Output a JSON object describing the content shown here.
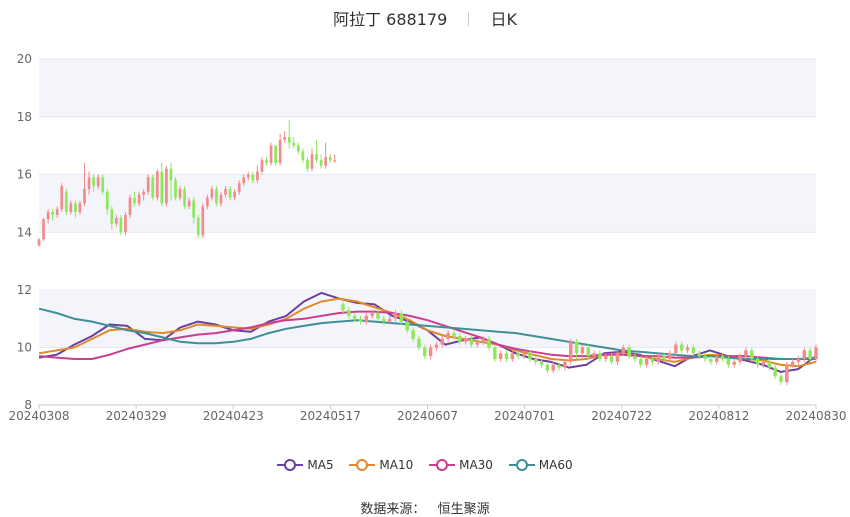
{
  "title": {
    "name": "阿拉丁",
    "code": "688179",
    "period": "日K"
  },
  "source": {
    "label": "数据来源：",
    "value": "恒生聚源"
  },
  "legend": [
    {
      "name": "MA5",
      "color": "#6b3fa0"
    },
    {
      "name": "MA10",
      "color": "#e08a2b"
    },
    {
      "name": "MA30",
      "color": "#cc3d8f"
    },
    {
      "name": "MA60",
      "color": "#3f8f96"
    }
  ],
  "colors": {
    "up": "#f28b8b",
    "down": "#8ee85a"
  },
  "chart_data": {
    "type": "candlestick",
    "x_ticks": [
      "20240308",
      "20240329",
      "20240423",
      "20240517",
      "20240607",
      "20240701",
      "20240722",
      "20240812",
      "20240830"
    ],
    "y_top": {
      "ylim": [
        12,
        20
      ],
      "ticks": [
        12,
        14,
        16,
        18,
        20
      ]
    },
    "y_bottom": {
      "ylim": [
        8,
        12
      ],
      "ticks": [
        8,
        10,
        12
      ]
    },
    "candles_top": [
      [
        13.55,
        13.75,
        13.5,
        13.8
      ],
      [
        13.75,
        14.45,
        13.7,
        14.5
      ],
      [
        14.45,
        14.7,
        14.3,
        14.8
      ],
      [
        14.7,
        14.6,
        14.4,
        14.8
      ],
      [
        14.6,
        14.8,
        14.5,
        14.9
      ],
      [
        14.8,
        15.6,
        14.7,
        15.7
      ],
      [
        15.4,
        14.7,
        14.6,
        15.5
      ],
      [
        14.7,
        15.0,
        14.6,
        15.1
      ],
      [
        15.0,
        14.7,
        14.5,
        15.1
      ],
      [
        14.7,
        15.0,
        14.6,
        15.1
      ],
      [
        15.0,
        15.5,
        14.9,
        16.4
      ],
      [
        15.5,
        15.9,
        15.3,
        16.1
      ],
      [
        15.9,
        15.6,
        15.4,
        16.0
      ],
      [
        15.6,
        15.9,
        15.5,
        16.0
      ],
      [
        15.9,
        15.4,
        15.3,
        16.0
      ],
      [
        15.4,
        14.8,
        14.6,
        15.5
      ],
      [
        14.8,
        14.3,
        14.1,
        14.9
      ],
      [
        14.3,
        14.5,
        14.2,
        14.6
      ],
      [
        14.5,
        14.0,
        13.9,
        14.6
      ],
      [
        14.0,
        14.6,
        13.9,
        14.7
      ],
      [
        14.6,
        15.2,
        14.5,
        15.3
      ],
      [
        15.2,
        15.0,
        14.9,
        15.4
      ],
      [
        15.0,
        15.3,
        14.9,
        15.4
      ],
      [
        15.3,
        15.4,
        15.1,
        15.5
      ],
      [
        15.4,
        15.9,
        15.3,
        16.0
      ],
      [
        15.9,
        15.2,
        15.1,
        16.0
      ],
      [
        15.2,
        16.1,
        15.1,
        16.2
      ],
      [
        16.1,
        15.0,
        14.9,
        16.4
      ],
      [
        15.0,
        16.2,
        14.9,
        16.3
      ],
      [
        16.2,
        15.8,
        15.1,
        16.4
      ],
      [
        15.8,
        15.2,
        15.1,
        15.9
      ],
      [
        15.2,
        15.5,
        15.1,
        15.6
      ],
      [
        15.5,
        14.9,
        14.8,
        15.6
      ],
      [
        14.9,
        15.1,
        14.8,
        15.2
      ],
      [
        15.1,
        14.5,
        14.3,
        15.2
      ],
      [
        14.5,
        13.9,
        13.8,
        14.6
      ],
      [
        13.9,
        14.9,
        13.8,
        15.0
      ],
      [
        14.9,
        15.2,
        14.8,
        15.3
      ],
      [
        15.2,
        15.5,
        15.1,
        15.6
      ],
      [
        15.5,
        15.0,
        14.9,
        15.6
      ],
      [
        15.0,
        15.3,
        14.9,
        15.4
      ],
      [
        15.3,
        15.5,
        15.2,
        15.6
      ],
      [
        15.5,
        15.2,
        15.1,
        15.6
      ],
      [
        15.2,
        15.4,
        15.1,
        15.5
      ],
      [
        15.4,
        15.7,
        15.3,
        15.8
      ],
      [
        15.7,
        15.9,
        15.6,
        16.0
      ],
      [
        15.9,
        16.0,
        15.8,
        16.1
      ],
      [
        16.0,
        15.8,
        15.7,
        16.1
      ],
      [
        15.8,
        16.1,
        15.7,
        16.3
      ],
      [
        16.1,
        16.5,
        16.0,
        16.6
      ],
      [
        16.5,
        16.4,
        16.3,
        16.6
      ],
      [
        16.4,
        17.0,
        16.3,
        17.1
      ],
      [
        17.0,
        16.4,
        16.3,
        17.0
      ],
      [
        16.4,
        17.2,
        16.3,
        17.4
      ],
      [
        17.2,
        17.3,
        17.1,
        17.5
      ],
      [
        17.3,
        17.1,
        16.9,
        17.9
      ],
      [
        17.1,
        17.0,
        16.9,
        17.3
      ],
      [
        17.0,
        16.8,
        16.7,
        17.1
      ],
      [
        16.8,
        16.5,
        16.4,
        16.9
      ],
      [
        16.5,
        16.2,
        16.1,
        16.6
      ],
      [
        16.2,
        16.7,
        16.1,
        16.9
      ],
      [
        16.7,
        16.5,
        16.4,
        17.2
      ],
      [
        16.5,
        16.3,
        16.2,
        16.7
      ],
      [
        16.3,
        16.6,
        16.2,
        17.1
      ],
      [
        16.6,
        16.5,
        16.4,
        16.7
      ],
      [
        16.5,
        16.5,
        16.4,
        16.7
      ]
    ],
    "candles_bottom": [
      [
        11.5,
        11.3,
        11.2,
        11.6
      ],
      [
        11.3,
        11.1,
        11.0,
        11.4
      ],
      [
        11.1,
        11.0,
        10.9,
        11.2
      ],
      [
        11.0,
        10.9,
        10.8,
        11.1
      ],
      [
        10.9,
        11.1,
        10.8,
        11.2
      ],
      [
        11.1,
        11.2,
        11.0,
        11.3
      ],
      [
        11.2,
        11.0,
        10.9,
        11.3
      ],
      [
        11.0,
        10.9,
        10.8,
        11.1
      ],
      [
        10.9,
        11.0,
        10.8,
        11.1
      ],
      [
        11.0,
        11.2,
        10.9,
        11.3
      ],
      [
        11.2,
        10.9,
        10.8,
        11.3
      ],
      [
        10.9,
        10.6,
        10.5,
        11.0
      ],
      [
        10.6,
        10.3,
        10.2,
        10.7
      ],
      [
        10.3,
        10.0,
        9.9,
        10.4
      ],
      [
        10.0,
        9.7,
        9.6,
        10.1
      ],
      [
        9.7,
        10.0,
        9.6,
        10.1
      ],
      [
        10.0,
        10.1,
        9.9,
        10.2
      ],
      [
        10.1,
        10.3,
        10.0,
        10.4
      ],
      [
        10.3,
        10.5,
        10.2,
        10.6
      ],
      [
        10.5,
        10.4,
        10.3,
        10.6
      ],
      [
        10.4,
        10.2,
        10.1,
        10.5
      ],
      [
        10.2,
        10.3,
        10.1,
        10.4
      ],
      [
        10.3,
        10.1,
        10.0,
        10.4
      ],
      [
        10.1,
        10.2,
        10.0,
        10.3
      ],
      [
        10.2,
        10.3,
        10.1,
        10.4
      ],
      [
        10.3,
        10.0,
        9.9,
        10.4
      ],
      [
        10.0,
        9.6,
        9.5,
        10.1
      ],
      [
        9.6,
        9.8,
        9.5,
        9.9
      ],
      [
        9.8,
        9.6,
        9.5,
        9.9
      ],
      [
        9.6,
        9.8,
        9.5,
        9.9
      ],
      [
        9.8,
        9.7,
        9.6,
        9.9
      ],
      [
        9.7,
        9.8,
        9.6,
        9.9
      ],
      [
        9.8,
        9.6,
        9.5,
        9.9
      ],
      [
        9.6,
        9.5,
        9.4,
        9.7
      ],
      [
        9.5,
        9.4,
        9.3,
        9.6
      ],
      [
        9.4,
        9.2,
        9.1,
        9.5
      ],
      [
        9.2,
        9.4,
        9.1,
        9.5
      ],
      [
        9.4,
        9.3,
        9.2,
        9.5
      ],
      [
        9.3,
        9.5,
        9.2,
        9.6
      ],
      [
        9.5,
        10.2,
        9.4,
        10.3
      ],
      [
        10.2,
        9.8,
        9.6,
        10.3
      ],
      [
        9.8,
        10.0,
        9.7,
        10.1
      ],
      [
        10.0,
        9.7,
        9.6,
        10.1
      ],
      [
        9.7,
        9.8,
        9.6,
        9.9
      ],
      [
        9.8,
        9.6,
        9.5,
        9.9
      ],
      [
        9.6,
        9.7,
        9.5,
        9.8
      ],
      [
        9.7,
        9.5,
        9.4,
        9.8
      ],
      [
        9.5,
        9.8,
        9.4,
        9.9
      ],
      [
        9.8,
        10.0,
        9.7,
        10.1
      ],
      [
        10.0,
        9.7,
        9.6,
        10.1
      ],
      [
        9.7,
        9.6,
        9.5,
        9.8
      ],
      [
        9.6,
        9.4,
        9.3,
        9.7
      ],
      [
        9.4,
        9.6,
        9.3,
        9.7
      ],
      [
        9.6,
        9.5,
        9.4,
        9.7
      ],
      [
        9.5,
        9.7,
        9.4,
        9.8
      ],
      [
        9.7,
        9.6,
        9.5,
        9.8
      ],
      [
        9.6,
        9.8,
        9.5,
        9.9
      ],
      [
        9.8,
        10.1,
        9.7,
        10.2
      ],
      [
        10.1,
        9.9,
        9.8,
        10.2
      ],
      [
        9.9,
        10.0,
        9.8,
        10.1
      ],
      [
        10.0,
        9.8,
        9.7,
        10.1
      ],
      [
        9.8,
        9.7,
        9.6,
        9.9
      ],
      [
        9.7,
        9.6,
        9.5,
        9.8
      ],
      [
        9.6,
        9.5,
        9.4,
        9.7
      ],
      [
        9.5,
        9.7,
        9.4,
        9.8
      ],
      [
        9.7,
        9.6,
        9.5,
        9.8
      ],
      [
        9.6,
        9.4,
        9.3,
        9.7
      ],
      [
        9.4,
        9.5,
        9.3,
        9.6
      ],
      [
        9.5,
        9.7,
        9.4,
        9.8
      ],
      [
        9.7,
        9.9,
        9.6,
        10.0
      ],
      [
        9.9,
        9.6,
        9.5,
        10.0
      ],
      [
        9.6,
        9.4,
        9.3,
        9.7
      ],
      [
        9.4,
        9.5,
        9.3,
        9.6
      ],
      [
        9.5,
        9.3,
        9.2,
        9.6
      ],
      [
        9.3,
        9.0,
        8.9,
        9.4
      ],
      [
        9.0,
        8.8,
        8.7,
        9.1
      ],
      [
        8.8,
        9.4,
        8.7,
        9.5
      ],
      [
        9.4,
        9.5,
        9.3,
        9.6
      ],
      [
        9.5,
        9.6,
        9.4,
        9.7
      ],
      [
        9.6,
        9.9,
        9.5,
        10.0
      ],
      [
        9.9,
        9.6,
        9.5,
        10.0
      ],
      [
        9.6,
        10.0,
        9.5,
        10.1
      ]
    ],
    "ma_bottom": {
      "MA5": [
        9.65,
        9.75,
        10.1,
        10.4,
        10.8,
        10.75,
        10.3,
        10.25,
        10.7,
        10.9,
        10.8,
        10.6,
        10.55,
        10.9,
        11.1,
        11.6,
        11.9,
        11.7,
        11.55,
        11.5,
        11.1,
        10.9,
        10.6,
        10.1,
        10.25,
        10.35,
        10.1,
        9.8,
        9.6,
        9.5,
        9.3,
        9.4,
        9.8,
        9.85,
        9.75,
        9.55,
        9.35,
        9.7,
        9.9,
        9.7,
        9.55,
        9.4,
        9.15,
        9.25,
        9.7
      ],
      "MA10": [
        9.8,
        9.9,
        10.0,
        10.3,
        10.6,
        10.65,
        10.55,
        10.5,
        10.6,
        10.8,
        10.75,
        10.7,
        10.65,
        10.8,
        11.0,
        11.35,
        11.6,
        11.7,
        11.6,
        11.4,
        11.2,
        10.95,
        10.6,
        10.4,
        10.3,
        10.2,
        10.1,
        9.9,
        9.75,
        9.6,
        9.55,
        9.6,
        9.75,
        9.8,
        9.7,
        9.6,
        9.5,
        9.65,
        9.75,
        9.7,
        9.6,
        9.55,
        9.4,
        9.35,
        9.5
      ],
      "MA30": [
        9.7,
        9.65,
        9.6,
        9.6,
        9.75,
        9.95,
        10.1,
        10.25,
        10.35,
        10.45,
        10.5,
        10.6,
        10.7,
        10.85,
        10.95,
        11.0,
        11.1,
        11.2,
        11.25,
        11.25,
        11.2,
        11.1,
        10.95,
        10.75,
        10.55,
        10.35,
        10.1,
        9.95,
        9.85,
        9.75,
        9.7,
        9.7,
        9.75,
        9.75,
        9.7,
        9.7,
        9.65,
        9.65,
        9.7,
        9.7,
        9.7,
        9.65,
        9.6,
        9.6,
        9.6
      ],
      "MA60": [
        11.35,
        11.2,
        11.0,
        10.9,
        10.75,
        10.6,
        10.5,
        10.35,
        10.2,
        10.15,
        10.15,
        10.2,
        10.3,
        10.5,
        10.65,
        10.75,
        10.85,
        10.9,
        10.95,
        10.9,
        10.85,
        10.8,
        10.75,
        10.7,
        10.65,
        10.6,
        10.55,
        10.5,
        10.4,
        10.3,
        10.2,
        10.1,
        10.0,
        9.9,
        9.85,
        9.8,
        9.75,
        9.7,
        9.7,
        9.65,
        9.6,
        9.6,
        9.6,
        9.6,
        9.65
      ]
    }
  }
}
